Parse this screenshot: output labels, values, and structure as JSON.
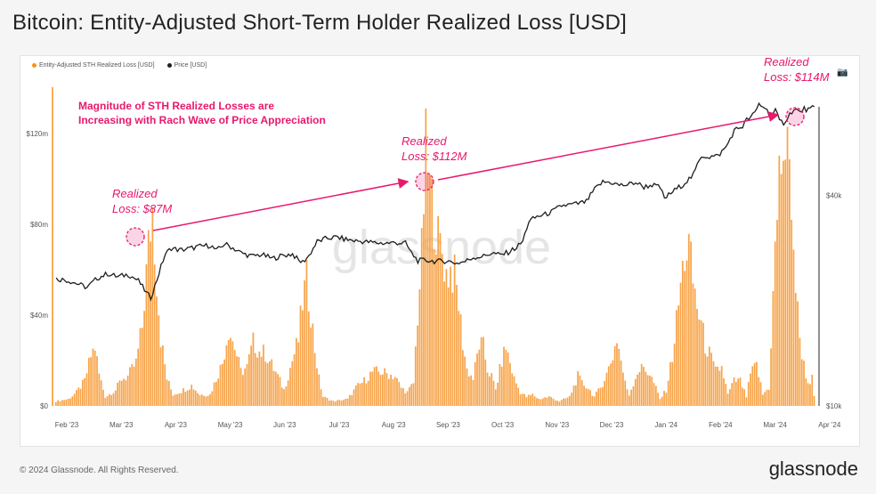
{
  "title": "Bitcoin: Entity-Adjusted Short-Term Holder Realized Loss [USD]",
  "legend": {
    "loss_label": "Entity-Adjusted STH Realized Loss [USD]",
    "price_label": "Price [USD]",
    "loss_color": "#f7931a",
    "price_color": "#222222"
  },
  "camera_icon": "camera-icon",
  "watermark": "glassnode",
  "footer": {
    "copyright": "© 2024 Glassnode. All Rights Reserved.",
    "brand": "glassnode"
  },
  "annotations": {
    "headline": [
      "Magnitude of STH Realized Losses are",
      "Increasing with Rach Wave of Price Appreciation"
    ],
    "peak1": [
      "Realized",
      "Loss: $87M"
    ],
    "peak2": [
      "Realized",
      "Loss: $112M"
    ],
    "peak3": [
      "Realized",
      "Loss: $114M"
    ],
    "color": "#e8186d"
  },
  "chart_data": {
    "type": "bar",
    "title": "Bitcoin: Entity-Adjusted Short-Term Holder Realized Loss [USD]",
    "x_tick_labels": [
      "Feb '23",
      "Mar '23",
      "Apr '23",
      "May '23",
      "Jun '23",
      "Jul '23",
      "Aug '23",
      "Sep '23",
      "Oct '23",
      "Nov '23",
      "Dec '23",
      "Jan '24",
      "Feb '24",
      "Mar '24",
      "Apr '24"
    ],
    "y_left": {
      "unit": "USD",
      "ticks": [
        "$0",
        "$40m",
        "$80m",
        "$120m"
      ],
      "tick_values": [
        0,
        40,
        80,
        120
      ],
      "range_m": [
        0,
        142
      ]
    },
    "y_right": {
      "unit": "USD",
      "scale": "log",
      "ticks": [
        "$10k",
        "$40k"
      ],
      "tick_values": [
        10,
        40
      ],
      "range_k": [
        10,
        73
      ]
    },
    "series": [
      {
        "name": "Entity-Adjusted STH Realized Loss [USD]",
        "color": "#f7931a",
        "unit": "USD millions",
        "keypoints": [
          [
            0,
            2
          ],
          [
            6,
            3
          ],
          [
            10,
            6
          ],
          [
            14,
            11
          ],
          [
            17,
            22
          ],
          [
            19,
            26
          ],
          [
            21,
            14
          ],
          [
            24,
            4
          ],
          [
            29,
            7
          ],
          [
            32,
            12
          ],
          [
            35,
            13
          ],
          [
            39,
            19
          ],
          [
            42,
            35
          ],
          [
            45,
            70
          ],
          [
            47,
            87
          ],
          [
            49,
            56
          ],
          [
            51,
            30
          ],
          [
            54,
            12
          ],
          [
            57,
            5
          ],
          [
            62,
            7
          ],
          [
            66,
            9
          ],
          [
            70,
            5
          ],
          [
            75,
            5
          ],
          [
            81,
            19
          ],
          [
            84,
            34
          ],
          [
            87,
            26
          ],
          [
            90,
            15
          ],
          [
            93,
            17
          ],
          [
            96,
            28
          ],
          [
            99,
            24
          ],
          [
            102,
            23
          ],
          [
            105,
            18
          ],
          [
            108,
            13
          ],
          [
            111,
            7
          ],
          [
            115,
            20
          ],
          [
            118,
            29
          ],
          [
            120,
            46
          ],
          [
            122,
            55
          ],
          [
            124,
            42
          ],
          [
            126,
            25
          ],
          [
            128,
            12
          ],
          [
            130,
            4
          ],
          [
            135,
            2
          ],
          [
            142,
            3
          ],
          [
            146,
            8
          ],
          [
            150,
            11
          ],
          [
            154,
            15
          ],
          [
            158,
            15
          ],
          [
            162,
            14
          ],
          [
            165,
            13
          ],
          [
            168,
            8
          ],
          [
            171,
            6
          ],
          [
            174,
            10
          ],
          [
            176,
            40
          ],
          [
            178,
            67
          ],
          [
            180,
            112
          ],
          [
            182,
            95
          ],
          [
            184,
            84
          ],
          [
            186,
            73
          ],
          [
            188,
            68
          ],
          [
            190,
            58
          ],
          [
            192,
            60
          ],
          [
            194,
            57
          ],
          [
            196,
            45
          ],
          [
            198,
            28
          ],
          [
            200,
            16
          ],
          [
            203,
            12
          ],
          [
            206,
            27
          ],
          [
            208,
            26
          ],
          [
            210,
            16
          ],
          [
            212,
            13
          ],
          [
            214,
            7
          ],
          [
            217,
            20
          ],
          [
            219,
            26
          ],
          [
            221,
            19
          ],
          [
            223,
            12
          ],
          [
            226,
            6
          ],
          [
            229,
            4
          ],
          [
            232,
            5
          ],
          [
            235,
            3
          ],
          [
            240,
            4
          ],
          [
            245,
            2
          ],
          [
            250,
            4
          ],
          [
            254,
            13
          ],
          [
            256,
            10
          ],
          [
            259,
            8
          ],
          [
            262,
            4
          ],
          [
            265,
            8
          ],
          [
            268,
            14
          ],
          [
            271,
            22
          ],
          [
            273,
            30
          ],
          [
            275,
            20
          ],
          [
            277,
            10
          ],
          [
            279,
            5
          ],
          [
            283,
            15
          ],
          [
            286,
            17
          ],
          [
            289,
            14
          ],
          [
            291,
            10
          ],
          [
            294,
            3
          ],
          [
            297,
            7
          ],
          [
            300,
            22
          ],
          [
            302,
            37
          ],
          [
            304,
            53
          ],
          [
            306,
            66
          ],
          [
            308,
            70
          ],
          [
            310,
            55
          ],
          [
            312,
            44
          ],
          [
            314,
            36
          ],
          [
            316,
            27
          ],
          [
            318,
            23
          ],
          [
            321,
            15
          ],
          [
            324,
            17
          ],
          [
            327,
            5
          ],
          [
            330,
            11
          ],
          [
            333,
            11
          ],
          [
            336,
            4
          ],
          [
            338,
            14
          ],
          [
            341,
            18
          ],
          [
            344,
            5
          ],
          [
            347,
            8
          ],
          [
            350,
            68
          ],
          [
            352,
            100
          ],
          [
            354,
            114
          ],
          [
            356,
            108
          ],
          [
            358,
            92
          ],
          [
            360,
            52
          ],
          [
            362,
            30
          ],
          [
            364,
            18
          ],
          [
            366,
            10
          ],
          [
            368,
            12
          ],
          [
            369,
            4
          ]
        ]
      },
      {
        "name": "Price [USD]",
        "color": "#222222",
        "unit": "USD thousands",
        "keypoints": [
          [
            0,
            23.1
          ],
          [
            5,
            22.9
          ],
          [
            10,
            22.4
          ],
          [
            15,
            21.8
          ],
          [
            20,
            23.2
          ],
          [
            25,
            23.9
          ],
          [
            30,
            23.4
          ],
          [
            35,
            23.8
          ],
          [
            40,
            22.8
          ],
          [
            44,
            21.0
          ],
          [
            46,
            20.4
          ],
          [
            48,
            22.0
          ],
          [
            50,
            24.0
          ],
          [
            53,
            27.1
          ],
          [
            56,
            28.3
          ],
          [
            60,
            27.9
          ],
          [
            65,
            28.2
          ],
          [
            70,
            28.6
          ],
          [
            75,
            28.8
          ],
          [
            78,
            27.8
          ],
          [
            82,
            29.1
          ],
          [
            86,
            28.3
          ],
          [
            90,
            27.4
          ],
          [
            95,
            26.8
          ],
          [
            100,
            27.1
          ],
          [
            105,
            26.4
          ],
          [
            110,
            26.9
          ],
          [
            115,
            27.2
          ],
          [
            118,
            26.0
          ],
          [
            120,
            25.8
          ],
          [
            123,
            26.9
          ],
          [
            127,
            29.5
          ],
          [
            132,
            30.2
          ],
          [
            137,
            30.4
          ],
          [
            140,
            30.0
          ],
          [
            145,
            29.7
          ],
          [
            150,
            29.5
          ],
          [
            155,
            29.3
          ],
          [
            160,
            29.2
          ],
          [
            165,
            29.3
          ],
          [
            170,
            29.2
          ],
          [
            173,
            27.3
          ],
          [
            176,
            26.0
          ],
          [
            180,
            26.1
          ],
          [
            185,
            25.9
          ],
          [
            190,
            26.0
          ],
          [
            195,
            25.6
          ],
          [
            199,
            25.9
          ],
          [
            203,
            26.6
          ],
          [
            208,
            26.8
          ],
          [
            212,
            27.4
          ],
          [
            216,
            27.0
          ],
          [
            220,
            27.5
          ],
          [
            224,
            28.4
          ],
          [
            227,
            29.5
          ],
          [
            230,
            33.7
          ],
          [
            234,
            34.8
          ],
          [
            238,
            35.3
          ],
          [
            242,
            36.1
          ],
          [
            246,
            37.4
          ],
          [
            250,
            37.6
          ],
          [
            254,
            37.9
          ],
          [
            258,
            38.4
          ],
          [
            262,
            41.6
          ],
          [
            266,
            43.7
          ],
          [
            270,
            43.6
          ],
          [
            274,
            42.8
          ],
          [
            278,
            42.9
          ],
          [
            282,
            43.6
          ],
          [
            286,
            42.3
          ],
          [
            290,
            42.9
          ],
          [
            294,
            42.1
          ],
          [
            296,
            39.2
          ],
          [
            298,
            40.1
          ],
          [
            300,
            41.0
          ],
          [
            305,
            43.0
          ],
          [
            310,
            45.7
          ],
          [
            314,
            52.0
          ],
          [
            318,
            51.6
          ],
          [
            322,
            51.9
          ],
          [
            326,
            55.0
          ],
          [
            330,
            61.3
          ],
          [
            332,
            62.3
          ],
          [
            334,
            63.1
          ],
          [
            336,
            65.8
          ],
          [
            338,
            66.9
          ],
          [
            340,
            68.8
          ],
          [
            342,
            73.0
          ],
          [
            345,
            71.3
          ],
          [
            348,
            67.0
          ],
          [
            350,
            70.0
          ],
          [
            352,
            65.2
          ],
          [
            354,
            64.6
          ],
          [
            356,
            67.0
          ],
          [
            358,
            69.6
          ],
          [
            360,
            70.4
          ],
          [
            362,
            69.0
          ],
          [
            364,
            70.8
          ],
          [
            366,
            70.3
          ],
          [
            368,
            71.0
          ]
        ]
      }
    ],
    "grid": false,
    "legend_position": "top-left"
  }
}
